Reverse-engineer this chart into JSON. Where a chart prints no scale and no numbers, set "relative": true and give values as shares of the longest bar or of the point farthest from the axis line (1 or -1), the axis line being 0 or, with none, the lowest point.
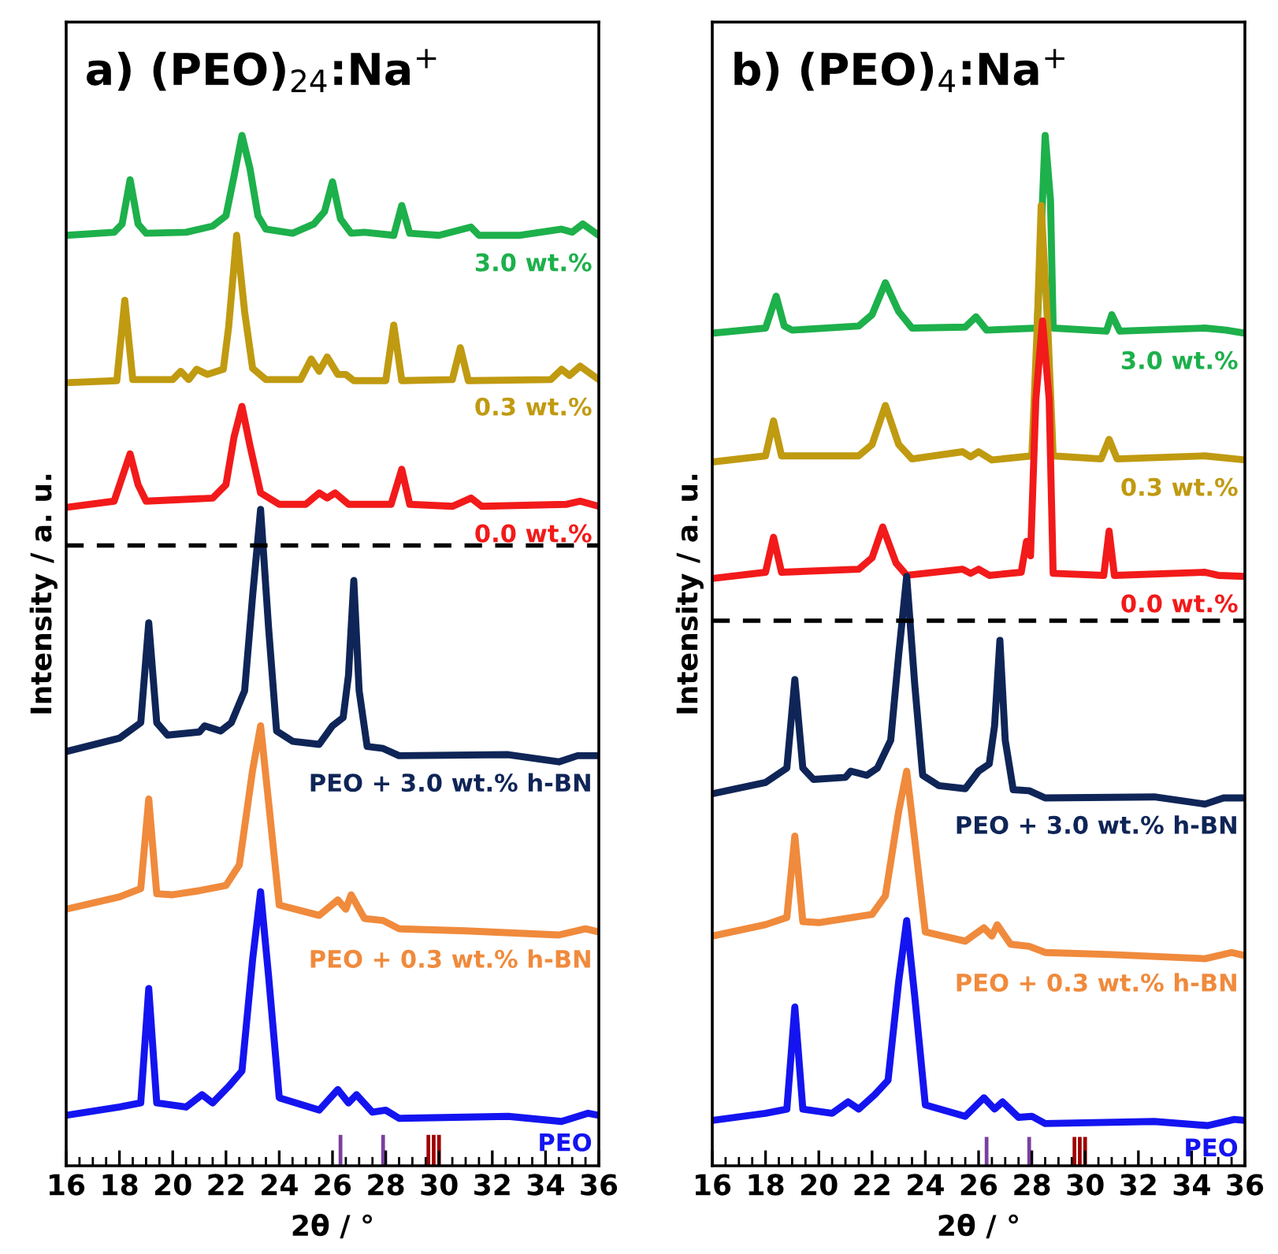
{
  "chart_data": [
    {
      "type": "line",
      "title": "a) (PEO)$_{24}$:Na$^{+}$",
      "xlabel": "2θ / °",
      "ylabel": "Intensity / a. u.",
      "relative": true,
      "xlim": [
        16,
        36
      ],
      "xticks": [
        16,
        18,
        20,
        22,
        24,
        26,
        28,
        30,
        32,
        34,
        36
      ],
      "legend": false,
      "grid": false,
      "marker": "none",
      "line_style": "solid",
      "ref_lines": [
        {
          "axis": "y",
          "value": 0.602,
          "color": "#000000",
          "line_style": "dashed"
        }
      ],
      "series": [
        {
          "name": "3.0 wt.%",
          "color": "#1db04b",
          "x": [
            16,
            17.8,
            18.1,
            18.4,
            18.7,
            19.0,
            20.5,
            21.5,
            22.0,
            22.3,
            22.6,
            22.9,
            23.2,
            23.5,
            24.5,
            25.3,
            25.7,
            26.0,
            26.3,
            26.7,
            27.2,
            28.3,
            28.6,
            28.9,
            30.0,
            31.2,
            31.5,
            33,
            34.6,
            35.0,
            35.4,
            36
          ],
          "values": [
            0.903,
            0.906,
            0.914,
            0.957,
            0.914,
            0.905,
            0.906,
            0.912,
            0.922,
            0.96,
            1.0,
            0.968,
            0.922,
            0.909,
            0.905,
            0.914,
            0.926,
            0.955,
            0.919,
            0.905,
            0.906,
            0.903,
            0.932,
            0.905,
            0.903,
            0.911,
            0.903,
            0.903,
            0.909,
            0.906,
            0.914,
            0.903
          ]
        },
        {
          "name": "0.3 wt.%",
          "color": "#c09a10",
          "x": [
            16,
            17.9,
            18.2,
            18.5,
            20.0,
            20.3,
            20.6,
            20.9,
            21.3,
            21.9,
            22.1,
            22.4,
            22.7,
            23.0,
            23.5,
            24.8,
            25.2,
            25.5,
            25.8,
            26.2,
            26.5,
            26.8,
            28.0,
            28.3,
            28.6,
            30.5,
            30.8,
            31.1,
            34.2,
            34.6,
            34.9,
            35.3,
            36
          ],
          "values": [
            0.76,
            0.762,
            0.84,
            0.763,
            0.763,
            0.771,
            0.763,
            0.773,
            0.768,
            0.773,
            0.814,
            0.903,
            0.829,
            0.774,
            0.763,
            0.763,
            0.783,
            0.771,
            0.785,
            0.768,
            0.768,
            0.762,
            0.762,
            0.816,
            0.762,
            0.763,
            0.794,
            0.762,
            0.763,
            0.773,
            0.767,
            0.776,
            0.763
          ]
        },
        {
          "name": "0.0 wt.%",
          "color": "#f21a1a",
          "x": [
            16,
            17.8,
            18.1,
            18.4,
            18.7,
            19.0,
            21.5,
            22.0,
            22.3,
            22.6,
            22.9,
            23.3,
            24.0,
            25.0,
            25.5,
            25.8,
            26.1,
            26.6,
            28.2,
            28.6,
            28.9,
            30.5,
            31.2,
            31.6,
            34.8,
            35.3,
            36
          ],
          "values": [
            0.639,
            0.645,
            0.668,
            0.691,
            0.661,
            0.645,
            0.648,
            0.661,
            0.707,
            0.737,
            0.699,
            0.653,
            0.642,
            0.642,
            0.653,
            0.648,
            0.653,
            0.642,
            0.642,
            0.676,
            0.642,
            0.64,
            0.648,
            0.64,
            0.642,
            0.645,
            0.64
          ]
        },
        {
          "name": "PEO + 3.0 wt.% h-BN",
          "color": "#0f2557",
          "x": [
            16,
            18.0,
            18.8,
            19.1,
            19.4,
            19.8,
            21.0,
            21.2,
            21.8,
            22.2,
            22.7,
            23.0,
            23.3,
            23.6,
            23.9,
            24.5,
            25.5,
            26.0,
            26.4,
            26.6,
            26.8,
            27.0,
            27.3,
            27.9,
            28.5,
            32.6,
            34.5,
            35.2,
            36
          ],
          "values": [
            0.402,
            0.415,
            0.43,
            0.527,
            0.43,
            0.418,
            0.421,
            0.427,
            0.422,
            0.43,
            0.461,
            0.553,
            0.637,
            0.522,
            0.422,
            0.412,
            0.409,
            0.427,
            0.435,
            0.476,
            0.568,
            0.461,
            0.407,
            0.405,
            0.398,
            0.399,
            0.392,
            0.398,
            0.398
          ]
        },
        {
          "name": "PEO + 0.3 wt.% h-BN",
          "color": "#f08a3c",
          "x": [
            16,
            18.0,
            18.8,
            19.1,
            19.4,
            20.0,
            21.0,
            22.0,
            22.5,
            23.0,
            23.3,
            23.6,
            24.0,
            25.5,
            26.2,
            26.5,
            26.7,
            27.2,
            27.9,
            28.5,
            31,
            34.5,
            35.5,
            36
          ],
          "values": [
            0.249,
            0.261,
            0.269,
            0.356,
            0.264,
            0.263,
            0.267,
            0.272,
            0.292,
            0.384,
            0.427,
            0.353,
            0.253,
            0.243,
            0.258,
            0.249,
            0.263,
            0.24,
            0.238,
            0.23,
            0.228,
            0.224,
            0.23,
            0.227
          ]
        },
        {
          "name": "PEO",
          "color": "#1414f0",
          "x": [
            16,
            18.0,
            18.8,
            19.1,
            19.4,
            20.5,
            21.1,
            21.5,
            22.1,
            22.6,
            23.0,
            23.3,
            23.6,
            24.0,
            25.5,
            26.2,
            26.6,
            26.9,
            27.5,
            28.0,
            28.5,
            32.6,
            34.6,
            35.6,
            36
          ],
          "values": [
            0.049,
            0.057,
            0.061,
            0.172,
            0.061,
            0.057,
            0.069,
            0.061,
            0.077,
            0.092,
            0.2,
            0.266,
            0.184,
            0.066,
            0.054,
            0.074,
            0.061,
            0.069,
            0.052,
            0.054,
            0.046,
            0.048,
            0.043,
            0.051,
            0.049
          ]
        },
        {
          "type": "bar",
          "color": "#7a3fa0",
          "x": [
            26.3,
            27.9
          ],
          "values": [
            0.03,
            0.03
          ]
        },
        {
          "type": "bar",
          "color": "#a00000",
          "x": [
            29.6,
            29.8,
            30.0
          ],
          "values": [
            0.03,
            0.03,
            0.03
          ]
        }
      ]
    },
    {
      "type": "line",
      "title": "b) (PEO)$_{4}$:Na$^{+}$",
      "xlabel": "2θ / °",
      "ylabel": "Intensity / a. u.",
      "relative": true,
      "xlim": [
        16,
        36
      ],
      "xticks": [
        16,
        18,
        20,
        22,
        24,
        26,
        28,
        30,
        32,
        34,
        36
      ],
      "legend": false,
      "grid": false,
      "marker": "none",
      "line_style": "solid",
      "ref_lines": [
        {
          "axis": "y",
          "value": 0.529,
          "color": "#000000",
          "line_style": "dashed"
        }
      ],
      "series": [
        {
          "name": "3.0 wt.%",
          "color": "#1db04b",
          "x": [
            16,
            18.0,
            18.4,
            18.7,
            19.0,
            21.5,
            22.0,
            22.5,
            23.0,
            23.5,
            25.5,
            25.9,
            26.3,
            28.2,
            28.4,
            28.5,
            28.7,
            28.8,
            30.8,
            31.0,
            31.3,
            34.5,
            35.3,
            36
          ],
          "values": [
            0.808,
            0.813,
            0.844,
            0.815,
            0.811,
            0.815,
            0.826,
            0.857,
            0.829,
            0.813,
            0.814,
            0.824,
            0.811,
            0.813,
            0.937,
            1.0,
            0.937,
            0.813,
            0.81,
            0.826,
            0.81,
            0.813,
            0.811,
            0.808
          ]
        },
        {
          "name": "0.3 wt.%",
          "color": "#c09a10",
          "x": [
            16,
            18.0,
            18.3,
            18.6,
            21.5,
            22.0,
            22.5,
            23.0,
            23.5,
            25.4,
            25.7,
            26.0,
            26.5,
            28.0,
            28.2,
            28.35,
            28.6,
            28.8,
            30.6,
            30.9,
            31.2,
            34.5,
            36
          ],
          "values": [
            0.683,
            0.689,
            0.723,
            0.689,
            0.689,
            0.7,
            0.738,
            0.7,
            0.686,
            0.693,
            0.688,
            0.693,
            0.685,
            0.689,
            0.813,
            0.932,
            0.813,
            0.689,
            0.686,
            0.705,
            0.686,
            0.689,
            0.685
          ]
        },
        {
          "name": "0.0 wt.%",
          "color": "#f21a1a",
          "x": [
            16,
            18.0,
            18.3,
            18.6,
            21.5,
            22.0,
            22.4,
            22.9,
            23.3,
            25.4,
            25.7,
            26.0,
            26.4,
            27.6,
            27.8,
            27.95,
            28.15,
            28.4,
            28.65,
            28.8,
            30.7,
            30.9,
            31.1,
            34.5,
            35.0,
            36
          ],
          "values": [
            0.57,
            0.576,
            0.61,
            0.576,
            0.579,
            0.59,
            0.62,
            0.585,
            0.573,
            0.579,
            0.575,
            0.579,
            0.573,
            0.576,
            0.606,
            0.592,
            0.744,
            0.82,
            0.744,
            0.575,
            0.573,
            0.616,
            0.573,
            0.576,
            0.573,
            0.572
          ]
        },
        {
          "name": "PEO + 3.0 wt.% h-BN",
          "color": "#0f2557",
          "x": [
            16,
            18.0,
            18.8,
            19.1,
            19.4,
            19.8,
            21.0,
            21.2,
            21.8,
            22.2,
            22.7,
            23.0,
            23.3,
            23.6,
            23.9,
            24.5,
            25.5,
            26.0,
            26.4,
            26.6,
            26.8,
            27.0,
            27.3,
            27.9,
            28.5,
            32.6,
            34.5,
            35.2,
            36
          ],
          "values": [
            0.361,
            0.372,
            0.386,
            0.472,
            0.386,
            0.375,
            0.377,
            0.383,
            0.379,
            0.386,
            0.413,
            0.496,
            0.572,
            0.468,
            0.379,
            0.369,
            0.366,
            0.383,
            0.39,
            0.427,
            0.51,
            0.413,
            0.365,
            0.364,
            0.357,
            0.358,
            0.351,
            0.357,
            0.357
          ]
        },
        {
          "name": "PEO + 0.3 wt.% h-BN",
          "color": "#f08a3c",
          "x": [
            16,
            18.0,
            18.8,
            19.1,
            19.4,
            20.0,
            21.0,
            22.0,
            22.5,
            23.0,
            23.3,
            23.6,
            24.0,
            25.5,
            26.2,
            26.5,
            26.7,
            27.2,
            27.9,
            28.5,
            31,
            34.5,
            35.5,
            36
          ],
          "values": [
            0.223,
            0.234,
            0.241,
            0.32,
            0.237,
            0.236,
            0.24,
            0.244,
            0.262,
            0.344,
            0.383,
            0.317,
            0.227,
            0.218,
            0.231,
            0.223,
            0.234,
            0.215,
            0.213,
            0.207,
            0.205,
            0.201,
            0.207,
            0.204
          ]
        },
        {
          "name": "PEO",
          "color": "#1414f0",
          "x": [
            16,
            18.0,
            18.8,
            19.1,
            19.4,
            20.5,
            21.1,
            21.5,
            22.1,
            22.6,
            23.0,
            23.3,
            23.6,
            24.0,
            25.5,
            26.2,
            26.6,
            26.9,
            27.5,
            28.0,
            28.5,
            32.6,
            34.6,
            35.6,
            36
          ],
          "values": [
            0.044,
            0.051,
            0.055,
            0.154,
            0.055,
            0.051,
            0.062,
            0.055,
            0.069,
            0.083,
            0.179,
            0.238,
            0.165,
            0.059,
            0.048,
            0.066,
            0.055,
            0.062,
            0.047,
            0.048,
            0.041,
            0.043,
            0.039,
            0.045,
            0.044
          ]
        },
        {
          "type": "bar",
          "color": "#7a3fa0",
          "x": [
            26.3,
            27.9
          ],
          "values": [
            0.028,
            0.028
          ]
        },
        {
          "type": "bar",
          "color": "#a00000",
          "x": [
            29.6,
            29.8,
            30.0
          ],
          "values": [
            0.028,
            0.028,
            0.028
          ]
        }
      ]
    }
  ]
}
